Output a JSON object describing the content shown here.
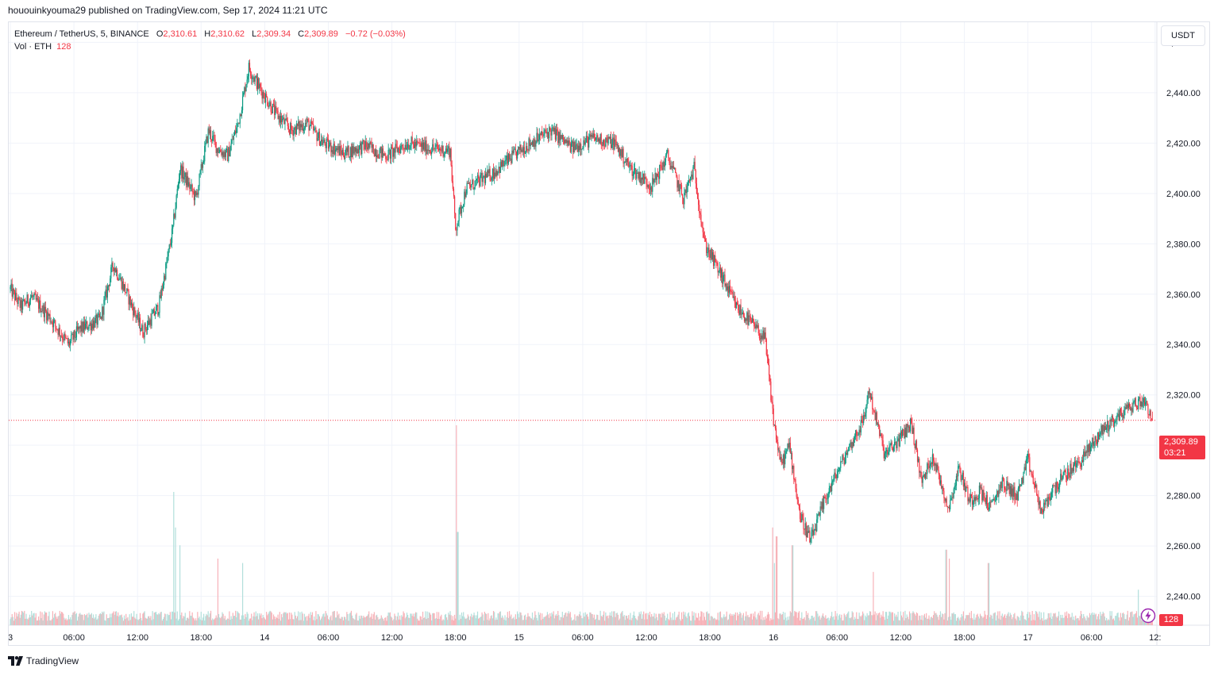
{
  "header": {
    "publish_line": "hououinkyouma29 published on TradingView.com, Sep 17, 2024 11:21 UTC"
  },
  "legend": {
    "symbol": "Ethereum / TetherUS, 5, BINANCE",
    "open_key": "O",
    "open": "2,310.61",
    "high_key": "H",
    "high": "2,310.62",
    "low_key": "L",
    "low": "2,309.34",
    "close_key": "C",
    "close": "2,309.89",
    "change": "−0.72 (−0.03%)",
    "volume_label": "Vol · ETH",
    "volume_value": "128"
  },
  "currency_button": "USDT",
  "last_price_badge": {
    "price": "2,309.89",
    "countdown": "03:21"
  },
  "volume_badge": "128",
  "footer": {
    "brand": "TradingView"
  },
  "colors": {
    "up": "#089981",
    "down": "#f23645",
    "grid": "#f0f3fa",
    "volume_up": "#b2dfdb",
    "volume_down": "#f7b2b8",
    "last_price_line": "#f23645"
  },
  "icons": {
    "lightning": "lightning-icon",
    "brand_logo": "tradingview-logo-icon"
  },
  "chart_data": {
    "type": "candlestick",
    "symbol": "ETHUSDT",
    "interval_minutes": 5,
    "ylim": [
      2232,
      2468
    ],
    "y_ticks": [
      "2,460.00",
      "2,440.00",
      "2,420.00",
      "2,400.00",
      "2,380.00",
      "2,360.00",
      "2,340.00",
      "2,320.00",
      "2,300.00",
      "2,280.00",
      "2,260.00",
      "2,240.00"
    ],
    "y_tick_values": [
      2460,
      2440,
      2420,
      2400,
      2380,
      2360,
      2340,
      2320,
      2300,
      2280,
      2260,
      2240
    ],
    "x_ticks": [
      "3",
      "06:00",
      "12:00",
      "18:00",
      "14",
      "06:00",
      "12:00",
      "18:00",
      "15",
      "06:00",
      "12:00",
      "18:00",
      "16",
      "06:00",
      "12:00",
      "18:00",
      "17",
      "06:00",
      "12:"
    ],
    "x_tick_hours": [
      0,
      6,
      12,
      18,
      24,
      30,
      36,
      42,
      48,
      54,
      60,
      66,
      72,
      78,
      84,
      90,
      96,
      102,
      108
    ],
    "x_range_hours": [
      0,
      107.8
    ],
    "last_price": 2309.89,
    "path_knots": [
      [
        0.0,
        2362
      ],
      [
        1.0,
        2355
      ],
      [
        2.0,
        2359
      ],
      [
        3.5,
        2352
      ],
      [
        4.5,
        2346
      ],
      [
        5.5,
        2340
      ],
      [
        6.5,
        2346
      ],
      [
        8.5,
        2350
      ],
      [
        9.7,
        2372
      ],
      [
        10.8,
        2362
      ],
      [
        12.5,
        2345
      ],
      [
        14.0,
        2355
      ],
      [
        15.3,
        2385
      ],
      [
        16.0,
        2410
      ],
      [
        17.5,
        2398
      ],
      [
        18.7,
        2425
      ],
      [
        19.5,
        2418
      ],
      [
        20.5,
        2415
      ],
      [
        21.5,
        2428
      ],
      [
        22.5,
        2450
      ],
      [
        23.5,
        2442
      ],
      [
        25.0,
        2432
      ],
      [
        26.5,
        2425
      ],
      [
        28.0,
        2428
      ],
      [
        29.5,
        2420
      ],
      [
        31.5,
        2416
      ],
      [
        33.5,
        2419
      ],
      [
        35.5,
        2415
      ],
      [
        37.5,
        2420
      ],
      [
        39.5,
        2418
      ],
      [
        41.5,
        2417
      ],
      [
        42.0,
        2386
      ],
      [
        43.0,
        2402
      ],
      [
        45.5,
        2408
      ],
      [
        47.5,
        2415
      ],
      [
        49.0,
        2420
      ],
      [
        51.0,
        2425
      ],
      [
        53.0,
        2418
      ],
      [
        55.0,
        2422
      ],
      [
        57.0,
        2420
      ],
      [
        58.5,
        2410
      ],
      [
        60.5,
        2403
      ],
      [
        62.0,
        2415
      ],
      [
        63.5,
        2398
      ],
      [
        64.5,
        2410
      ],
      [
        65.5,
        2380
      ],
      [
        67.0,
        2368
      ],
      [
        68.5,
        2355
      ],
      [
        70.0,
        2348
      ],
      [
        71.2,
        2342
      ],
      [
        72.0,
        2310
      ],
      [
        72.7,
        2292
      ],
      [
        73.5,
        2300
      ],
      [
        74.5,
        2272
      ],
      [
        75.5,
        2262
      ],
      [
        77.0,
        2280
      ],
      [
        79.0,
        2298
      ],
      [
        80.5,
        2310
      ],
      [
        81.0,
        2322
      ],
      [
        82.5,
        2296
      ],
      [
        84.0,
        2303
      ],
      [
        85.0,
        2309
      ],
      [
        86.0,
        2285
      ],
      [
        87.0,
        2296
      ],
      [
        88.5,
        2275
      ],
      [
        89.5,
        2291
      ],
      [
        90.5,
        2278
      ],
      [
        91.5,
        2282
      ],
      [
        92.5,
        2275
      ],
      [
        93.5,
        2285
      ],
      [
        95.0,
        2280
      ],
      [
        96.0,
        2294
      ],
      [
        97.3,
        2273
      ],
      [
        98.3,
        2282
      ],
      [
        99.5,
        2288
      ],
      [
        101.0,
        2294
      ],
      [
        103.0,
        2306
      ],
      [
        105.5,
        2315
      ],
      [
        107.0,
        2318
      ],
      [
        107.8,
        2309.89
      ]
    ],
    "volume_spikes": [
      [
        15.4,
        30
      ],
      [
        15.6,
        22
      ],
      [
        16.0,
        18
      ],
      [
        19.6,
        15
      ],
      [
        21.9,
        14
      ],
      [
        42.1,
        45
      ],
      [
        42.2,
        21
      ],
      [
        71.9,
        22
      ],
      [
        72.1,
        14
      ],
      [
        72.3,
        20
      ],
      [
        73.8,
        18
      ],
      [
        81.4,
        12
      ],
      [
        88.3,
        17
      ],
      [
        88.6,
        15
      ],
      [
        92.3,
        14
      ],
      [
        106.4,
        8
      ]
    ]
  }
}
